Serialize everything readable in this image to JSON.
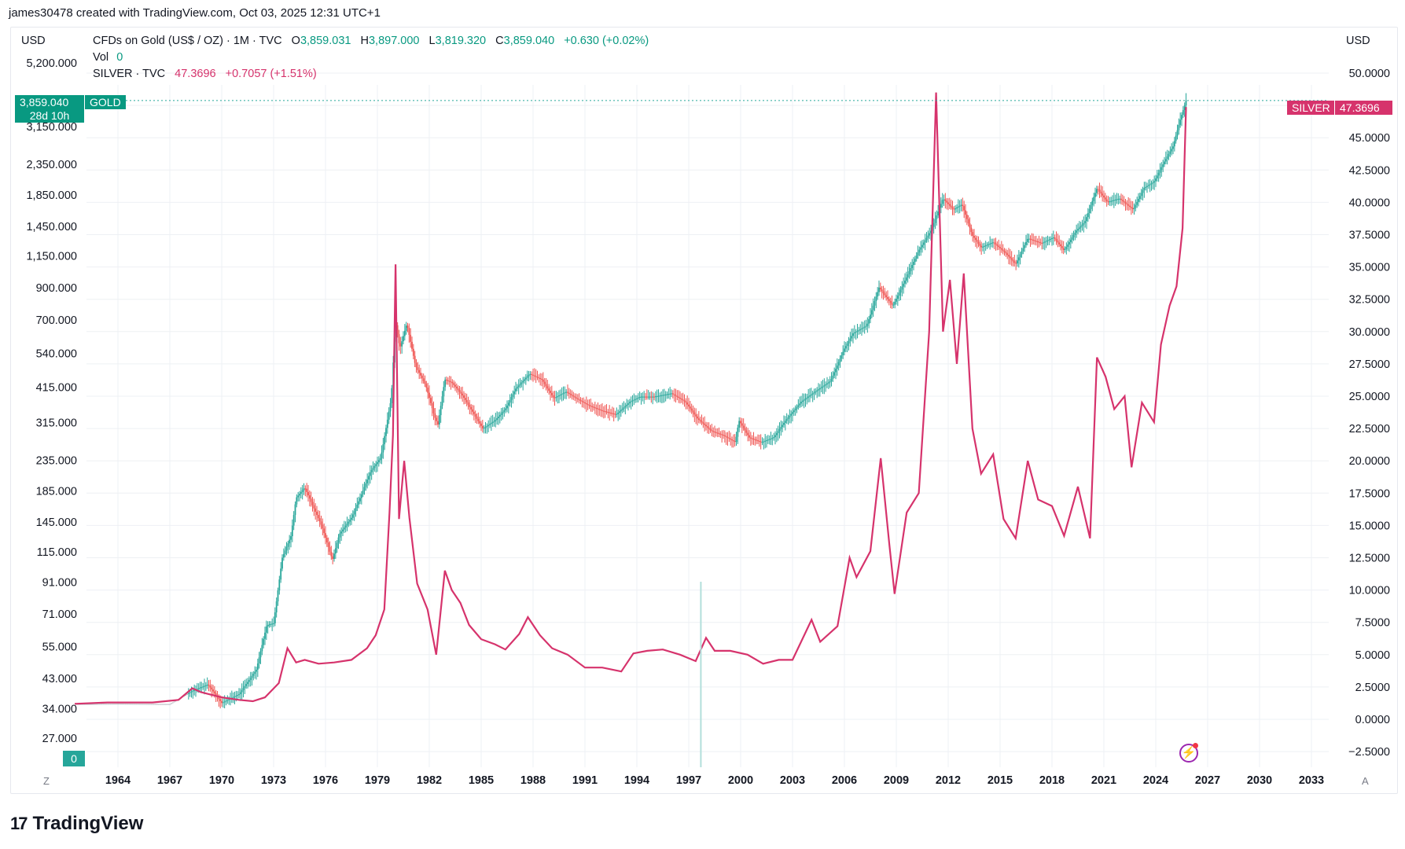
{
  "header": {
    "text": "james30478 created with TradingView.com, Oct 03, 2025 12:31 UTC+1"
  },
  "legend": {
    "main_title": "CFDs on Gold (US$ / OZ) · 1M · TVC",
    "o_key": "O",
    "o_val": "3,859.031",
    "h_key": "H",
    "h_val": "3,897.000",
    "l_key": "L",
    "l_val": "3,819.320",
    "c_key": "C",
    "c_val": "3,859.040",
    "change": "+0.630 (+0.02%)",
    "vol_key": "Vol",
    "vol_val": "0",
    "silver_title": "SILVER · TVC",
    "silver_val": "47.3696",
    "silver_change": "+0.7057 (+1.51%)"
  },
  "currency": {
    "left": "USD",
    "right": "USD"
  },
  "tags": {
    "gold_price": "3,859.040",
    "gold_label": "GOLD",
    "gold_countdown": "28d 10h",
    "silver_label": "SILVER",
    "silver_price": "47.3696",
    "vol_zero": "0"
  },
  "timebar": {
    "left_btn": "Z",
    "right_btn": "A"
  },
  "footer": {
    "brand": "TradingView",
    "mark": "17"
  },
  "colors": {
    "gold_up": "#26a69a",
    "gold_down": "#ef5350",
    "silver": "#d6336c",
    "grid": "#eef0f4",
    "text": "#131722"
  },
  "chart_data": {
    "type": "line",
    "x_ticks": [
      "1964",
      "1967",
      "1970",
      "1973",
      "1976",
      "1979",
      "1982",
      "1985",
      "1988",
      "1991",
      "1994",
      "1997",
      "2000",
      "2003",
      "2006",
      "2009",
      "2012",
      "2015",
      "2018",
      "2021",
      "2024",
      "2027",
      "2030",
      "2033"
    ],
    "left_axis": {
      "scale": "log",
      "ticks": [
        "5,200.000",
        "3,150.000",
        "2,350.000",
        "1,850.000",
        "1,450.000",
        "1,150.000",
        "900.000",
        "700.000",
        "540.000",
        "415.000",
        "315.000",
        "235.000",
        "185.000",
        "145.000",
        "115.000",
        "91.000",
        "71.000",
        "55.000",
        "43.000",
        "34.000",
        "27.000"
      ]
    },
    "right_axis": {
      "scale": "linear",
      "ticks": [
        "50.0000",
        "47.5000",
        "45.0000",
        "42.5000",
        "40.0000",
        "37.5000",
        "35.0000",
        "32.5000",
        "30.0000",
        "27.5000",
        "25.0000",
        "22.5000",
        "20.0000",
        "17.5000",
        "15.0000",
        "12.5000",
        "10.0000",
        "7.5000",
        "5.0000",
        "2.5000",
        "0.0000",
        "−2.5000"
      ]
    },
    "series": [
      {
        "name": "GOLD",
        "axis": "left",
        "style": "candles",
        "points": [
          [
            1961.5,
            35.2
          ],
          [
            1964,
            35.3
          ],
          [
            1967,
            35.2
          ],
          [
            1968.3,
            39
          ],
          [
            1969.2,
            41
          ],
          [
            1970.0,
            35.5
          ],
          [
            1971.0,
            38
          ],
          [
            1972.0,
            46
          ],
          [
            1972.6,
            65
          ],
          [
            1973.0,
            66
          ],
          [
            1973.5,
            110
          ],
          [
            1974.0,
            130
          ],
          [
            1974.3,
            175
          ],
          [
            1974.8,
            190
          ],
          [
            1975.2,
            168
          ],
          [
            1975.8,
            140
          ],
          [
            1976.4,
            108
          ],
          [
            1976.8,
            132
          ],
          [
            1977.5,
            150
          ],
          [
            1978.0,
            175
          ],
          [
            1978.6,
            215
          ],
          [
            1979.2,
            240
          ],
          [
            1979.8,
            380
          ],
          [
            1980.05,
            690
          ],
          [
            1980.3,
            560
          ],
          [
            1980.7,
            680
          ],
          [
            1981.2,
            490
          ],
          [
            1981.8,
            420
          ],
          [
            1982.3,
            330
          ],
          [
            1982.5,
            310
          ],
          [
            1982.9,
            440
          ],
          [
            1983.3,
            430
          ],
          [
            1983.9,
            390
          ],
          [
            1984.4,
            350
          ],
          [
            1985.1,
            300
          ],
          [
            1985.8,
            320
          ],
          [
            1986.4,
            350
          ],
          [
            1987.0,
            410
          ],
          [
            1987.8,
            460
          ],
          [
            1988.5,
            440
          ],
          [
            1989.2,
            380
          ],
          [
            1989.9,
            400
          ],
          [
            1990.5,
            380
          ],
          [
            1991.2,
            360
          ],
          [
            1992.0,
            345
          ],
          [
            1992.8,
            335
          ],
          [
            1993.6,
            370
          ],
          [
            1994.2,
            385
          ],
          [
            1995.0,
            385
          ],
          [
            1996.0,
            395
          ],
          [
            1996.8,
            370
          ],
          [
            1997.5,
            325
          ],
          [
            1998.3,
            295
          ],
          [
            1999.0,
            285
          ],
          [
            1999.7,
            270
          ],
          [
            1999.9,
            320
          ],
          [
            2000.5,
            280
          ],
          [
            2001.2,
            270
          ],
          [
            2001.9,
            280
          ],
          [
            2002.6,
            320
          ],
          [
            2003.5,
            370
          ],
          [
            2004.3,
            400
          ],
          [
            2005.2,
            435
          ],
          [
            2006.0,
            560
          ],
          [
            2006.5,
            630
          ],
          [
            2007.3,
            670
          ],
          [
            2008.0,
            900
          ],
          [
            2008.8,
            780
          ],
          [
            2009.5,
            950
          ],
          [
            2010.3,
            1200
          ],
          [
            2011.0,
            1400
          ],
          [
            2011.7,
            1800
          ],
          [
            2012.3,
            1650
          ],
          [
            2012.8,
            1720
          ],
          [
            2013.4,
            1350
          ],
          [
            2013.9,
            1230
          ],
          [
            2014.6,
            1280
          ],
          [
            2015.3,
            1180
          ],
          [
            2015.9,
            1080
          ],
          [
            2016.6,
            1320
          ],
          [
            2017.4,
            1270
          ],
          [
            2018.1,
            1330
          ],
          [
            2018.7,
            1200
          ],
          [
            2019.4,
            1400
          ],
          [
            2019.9,
            1500
          ],
          [
            2020.6,
            1950
          ],
          [
            2021.2,
            1750
          ],
          [
            2021.9,
            1800
          ],
          [
            2022.7,
            1650
          ],
          [
            2023.3,
            1950
          ],
          [
            2023.9,
            2050
          ],
          [
            2024.5,
            2400
          ],
          [
            2025.0,
            2700
          ],
          [
            2025.4,
            3300
          ],
          [
            2025.75,
            3859
          ]
        ]
      },
      {
        "name": "SILVER",
        "axis": "right",
        "style": "line",
        "points": [
          [
            1961.5,
            1.2
          ],
          [
            1963.4,
            1.3
          ],
          [
            1966.0,
            1.3
          ],
          [
            1967.5,
            1.5
          ],
          [
            1968.3,
            2.4
          ],
          [
            1968.8,
            2.1
          ],
          [
            1969.4,
            1.9
          ],
          [
            1970.0,
            1.7
          ],
          [
            1971.0,
            1.5
          ],
          [
            1971.8,
            1.4
          ],
          [
            1972.5,
            1.7
          ],
          [
            1973.3,
            2.8
          ],
          [
            1973.8,
            5.5
          ],
          [
            1974.3,
            4.4
          ],
          [
            1974.8,
            4.6
          ],
          [
            1975.6,
            4.3
          ],
          [
            1976.5,
            4.4
          ],
          [
            1977.5,
            4.6
          ],
          [
            1978.4,
            5.5
          ],
          [
            1978.9,
            6.5
          ],
          [
            1979.4,
            8.5
          ],
          [
            1979.7,
            16
          ],
          [
            1979.9,
            22
          ],
          [
            1980.05,
            35.2
          ],
          [
            1980.25,
            15.5
          ],
          [
            1980.55,
            20
          ],
          [
            1980.85,
            15.6
          ],
          [
            1981.3,
            10.5
          ],
          [
            1981.9,
            8.5
          ],
          [
            1982.4,
            5.0
          ],
          [
            1982.9,
            11.5
          ],
          [
            1983.3,
            10
          ],
          [
            1983.8,
            9.0
          ],
          [
            1984.3,
            7.3
          ],
          [
            1985.0,
            6.2
          ],
          [
            1985.8,
            5.8
          ],
          [
            1986.4,
            5.4
          ],
          [
            1987.2,
            6.6
          ],
          [
            1987.7,
            7.9
          ],
          [
            1988.4,
            6.5
          ],
          [
            1989.1,
            5.5
          ],
          [
            1990.0,
            5.0
          ],
          [
            1991.0,
            4.0
          ],
          [
            1992.0,
            4.0
          ],
          [
            1993.1,
            3.7
          ],
          [
            1993.8,
            5.1
          ],
          [
            1994.6,
            5.3
          ],
          [
            1995.5,
            5.4
          ],
          [
            1996.5,
            5.0
          ],
          [
            1997.4,
            4.5
          ],
          [
            1998.0,
            6.3
          ],
          [
            1998.5,
            5.3
          ],
          [
            1999.4,
            5.3
          ],
          [
            2000.4,
            5.0
          ],
          [
            2001.3,
            4.3
          ],
          [
            2002.2,
            4.6
          ],
          [
            2003.0,
            4.6
          ],
          [
            2004.1,
            7.7
          ],
          [
            2004.6,
            6.0
          ],
          [
            2005.6,
            7.2
          ],
          [
            2006.3,
            12.5
          ],
          [
            2006.7,
            11.0
          ],
          [
            2007.5,
            13.0
          ],
          [
            2008.1,
            20.2
          ],
          [
            2008.6,
            13.5
          ],
          [
            2008.9,
            9.7
          ],
          [
            2009.6,
            16.0
          ],
          [
            2010.3,
            17.5
          ],
          [
            2010.9,
            30.0
          ],
          [
            2011.3,
            48.5
          ],
          [
            2011.7,
            30.0
          ],
          [
            2012.1,
            34.0
          ],
          [
            2012.5,
            27.5
          ],
          [
            2012.9,
            34.5
          ],
          [
            2013.4,
            22.5
          ],
          [
            2013.9,
            19.0
          ],
          [
            2014.6,
            20.5
          ],
          [
            2015.2,
            15.5
          ],
          [
            2015.9,
            14.0
          ],
          [
            2016.6,
            20.0
          ],
          [
            2017.2,
            17.0
          ],
          [
            2018.0,
            16.5
          ],
          [
            2018.7,
            14.2
          ],
          [
            2019.5,
            18.0
          ],
          [
            2020.2,
            14.0
          ],
          [
            2020.6,
            28.0
          ],
          [
            2021.1,
            26.5
          ],
          [
            2021.6,
            24.0
          ],
          [
            2022.2,
            25.0
          ],
          [
            2022.6,
            19.5
          ],
          [
            2023.2,
            24.5
          ],
          [
            2023.9,
            23.0
          ],
          [
            2024.3,
            29.0
          ],
          [
            2024.8,
            32.0
          ],
          [
            2025.2,
            33.5
          ],
          [
            2025.55,
            38.0
          ],
          [
            2025.75,
            47.37
          ]
        ]
      }
    ]
  }
}
